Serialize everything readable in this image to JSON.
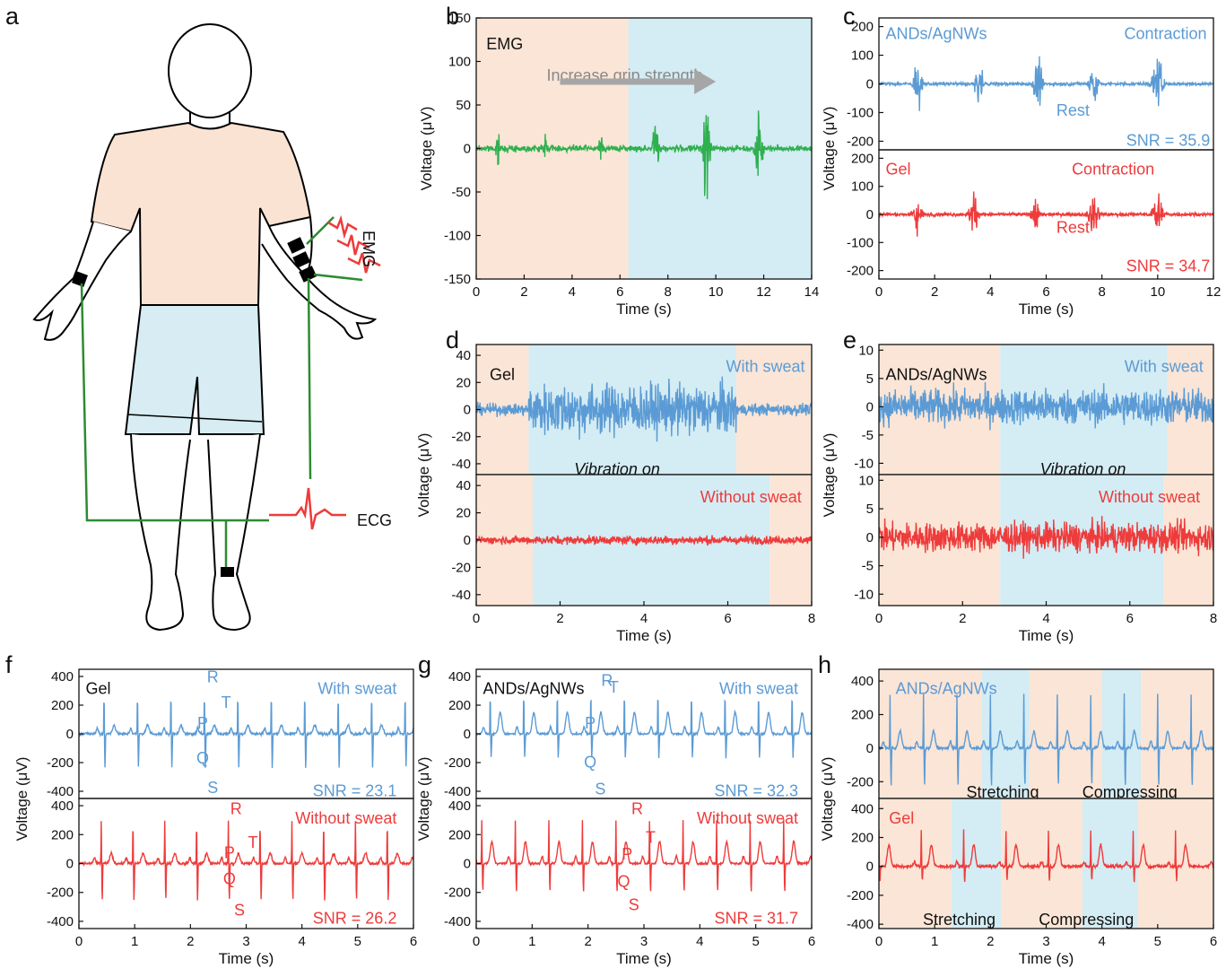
{
  "colors": {
    "blue": "#5b9bd5",
    "red": "#ee3b3b",
    "green": "#2fb04f",
    "orange_bg": "#fbe5d6",
    "blue_bg": "#d4ecf4",
    "wire": "#2e8b32",
    "shirt": "#fbe3d4",
    "shorts": "#d7ecf3"
  },
  "panel_a": {
    "letter": "a",
    "emg_label": "EMG",
    "ecg_label": "ECG"
  },
  "chart_data": [
    {
      "id": "b",
      "letter": "b",
      "type": "line",
      "annotations": [
        "EMG",
        "Increase grip strength"
      ],
      "xlabel": "Time (s)",
      "ylabel": "Voltage (μV)",
      "xlim": [
        0,
        14
      ],
      "ylim": [
        -150,
        150
      ],
      "xticks": [
        0,
        2,
        4,
        6,
        8,
        10,
        12,
        14
      ],
      "yticks": [
        -150,
        -100,
        -50,
        0,
        50,
        100,
        150
      ],
      "shaded": [
        {
          "from": 0,
          "to": 6.35,
          "color": "orange"
        },
        {
          "from": 6.35,
          "to": 14,
          "color": "blue"
        }
      ],
      "series": [
        {
          "color": "green",
          "kind": "emg",
          "noise": 2.5,
          "bursts": [
            [
              0.9,
              14,
              0.15
            ],
            [
              2.9,
              13,
              0.15
            ],
            [
              5.2,
              12,
              0.15
            ],
            [
              7.5,
              26,
              0.25
            ],
            [
              9.6,
              38,
              0.3
            ],
            [
              11.8,
              30,
              0.3
            ]
          ]
        }
      ]
    },
    {
      "id": "c",
      "letter": "c",
      "type": "line",
      "xlabel": "Time (s)",
      "ylabel": "Voltage (μV)",
      "xlim": [
        0,
        12
      ],
      "xticks": [
        0,
        2,
        4,
        6,
        8,
        10,
        12
      ],
      "subplots": [
        {
          "annotations": [
            "ANDs/AgNWs",
            "Contraction",
            "Rest",
            "SNR = 35.9"
          ],
          "ylim": [
            -230,
            230
          ],
          "yticks": [
            -200,
            -100,
            0,
            100,
            200
          ],
          "series": [
            {
              "color": "blue",
              "kind": "emg",
              "noise": 4,
              "bursts": [
                [
                  1.4,
                  55,
                  0.3
                ],
                [
                  3.6,
                  55,
                  0.3
                ],
                [
                  5.7,
                  60,
                  0.3
                ],
                [
                  7.7,
                  65,
                  0.3
                ],
                [
                  10,
                  70,
                  0.35
                ]
              ]
            }
          ]
        },
        {
          "annotations": [
            "Gel",
            "Contraction",
            "Rest",
            "SNR = 34.7"
          ],
          "ylim": [
            -230,
            230
          ],
          "yticks": [
            -200,
            -100,
            0,
            100,
            200
          ],
          "series": [
            {
              "color": "red",
              "kind": "emg",
              "noise": 4,
              "bursts": [
                [
                  1.4,
                  50,
                  0.3
                ],
                [
                  3.4,
                  50,
                  0.3
                ],
                [
                  5.6,
                  45,
                  0.3
                ],
                [
                  7.7,
                  55,
                  0.35
                ],
                [
                  10,
                  55,
                  0.35
                ]
              ]
            }
          ]
        }
      ]
    },
    {
      "id": "d",
      "letter": "d",
      "type": "line",
      "xlabel": "Time (s)",
      "ylabel": "Voltage (μV)",
      "xlim": [
        0,
        8
      ],
      "xticks": [
        0,
        2,
        4,
        6,
        8
      ],
      "subplots": [
        {
          "annotations": [
            "Gel",
            "With sweat",
            "Vibration on"
          ],
          "ylim": [
            -48,
            48
          ],
          "yticks": [
            -40,
            -20,
            0,
            20,
            40
          ],
          "shaded": [
            {
              "from": 0,
              "to": 1.25,
              "color": "orange"
            },
            {
              "from": 1.25,
              "to": 6.2,
              "color": "blue"
            },
            {
              "from": 6.2,
              "to": 8,
              "color": "orange"
            }
          ],
          "series": [
            {
              "color": "blue",
              "kind": "noise",
              "base": 3,
              "active": 13,
              "from": 1.25,
              "to": 6.2
            }
          ]
        },
        {
          "annotations": [
            "Without sweat"
          ],
          "ylim": [
            -48,
            48
          ],
          "yticks": [
            -40,
            -20,
            0,
            20,
            40
          ],
          "shaded": [
            {
              "from": 0,
              "to": 1.35,
              "color": "orange"
            },
            {
              "from": 1.35,
              "to": 7,
              "color": "blue"
            },
            {
              "from": 7,
              "to": 8,
              "color": "orange"
            }
          ],
          "series": [
            {
              "color": "red",
              "kind": "noise",
              "base": 2,
              "active": 2.2,
              "from": 1.35,
              "to": 7
            }
          ]
        }
      ]
    },
    {
      "id": "e",
      "letter": "e",
      "type": "line",
      "xlabel": "Time (s)",
      "ylabel": "Voltage (μV)",
      "xlim": [
        0,
        8
      ],
      "xticks": [
        0,
        2,
        4,
        6,
        8
      ],
      "subplots": [
        {
          "annotations": [
            "ANDs/AgNWs",
            "With sweat",
            "Vibration on"
          ],
          "ylim": [
            -12,
            11
          ],
          "yticks": [
            -10,
            -5,
            0,
            5,
            10
          ],
          "shaded": [
            {
              "from": 0,
              "to": 2.9,
              "color": "orange"
            },
            {
              "from": 2.9,
              "to": 6.9,
              "color": "blue"
            },
            {
              "from": 6.9,
              "to": 8,
              "color": "orange"
            }
          ],
          "series": [
            {
              "color": "blue",
              "kind": "noise",
              "base": 2.2,
              "active": 2.2,
              "from": 2.9,
              "to": 6.9
            }
          ]
        },
        {
          "annotations": [
            "Without sweat"
          ],
          "ylim": [
            -12,
            11
          ],
          "yticks": [
            -10,
            -5,
            0,
            5,
            10
          ],
          "shaded": [
            {
              "from": 0,
              "to": 2.9,
              "color": "orange"
            },
            {
              "from": 2.9,
              "to": 6.8,
              "color": "blue"
            },
            {
              "from": 6.8,
              "to": 8,
              "color": "orange"
            }
          ],
          "series": [
            {
              "color": "red",
              "kind": "noise",
              "base": 1.8,
              "active": 1.8,
              "from": 2.9,
              "to": 6.8
            }
          ]
        }
      ]
    },
    {
      "id": "f",
      "letter": "f",
      "type": "line",
      "xlabel": "Time (s)",
      "ylabel": "Voltage (μV)",
      "xlim": [
        0,
        6
      ],
      "xticks": [
        0,
        1,
        2,
        3,
        4,
        5,
        6
      ],
      "subplots": [
        {
          "annotations": [
            "Gel",
            "With sweat",
            "SNR = 23.1"
          ],
          "wave_labels": [
            "R",
            "P",
            "T",
            "Q",
            "S"
          ],
          "ylim": [
            -450,
            450
          ],
          "yticks": [
            -400,
            -200,
            0,
            200,
            400
          ],
          "series": [
            {
              "color": "blue",
              "kind": "ecg",
              "period": 0.6,
              "start": 0.45,
              "R": 300,
              "S": -240,
              "P": 40,
              "T": 60,
              "noise": 14
            }
          ]
        },
        {
          "annotations": [
            "Without sweat",
            "SNR = 26.2"
          ],
          "wave_labels": [
            "R",
            "P",
            "T",
            "Q",
            "S"
          ],
          "ylim": [
            -450,
            450
          ],
          "yticks": [
            -400,
            -200,
            0,
            200,
            400
          ],
          "series": [
            {
              "color": "red",
              "kind": "ecg",
              "period": 0.57,
              "start": 0.4,
              "R": 300,
              "S": -260,
              "P": 40,
              "T": 70,
              "noise": 12
            }
          ]
        }
      ]
    },
    {
      "id": "g",
      "letter": "g",
      "type": "line",
      "xlabel": "Time (s)",
      "ylabel": "Voltage (μV)",
      "xlim": [
        0,
        6
      ],
      "xticks": [
        0,
        1,
        2,
        3,
        4,
        5,
        6
      ],
      "subplots": [
        {
          "annotations": [
            "ANDs/AgNWs",
            "With sweat",
            "SNR = 32.3"
          ],
          "wave_labels": [
            "R",
            "P",
            "T",
            "Q",
            "S"
          ],
          "ylim": [
            -450,
            450
          ],
          "yticks": [
            -400,
            -200,
            0,
            200,
            400
          ],
          "series": [
            {
              "color": "blue",
              "kind": "ecg",
              "period": 0.6,
              "start": 0.25,
              "R": 310,
              "S": -170,
              "P": 50,
              "T": 150,
              "noise": 10
            }
          ]
        },
        {
          "annotations": [
            "Without sweat",
            "SNR = 31.7"
          ],
          "wave_labels": [
            "R",
            "P",
            "T",
            "Q",
            "S"
          ],
          "ylim": [
            -450,
            450
          ],
          "yticks": [
            -400,
            -200,
            0,
            200,
            400
          ],
          "series": [
            {
              "color": "red",
              "kind": "ecg",
              "period": 0.6,
              "start": 0.1,
              "R": 300,
              "S": -200,
              "P": 50,
              "T": 150,
              "noise": 10
            }
          ]
        }
      ]
    },
    {
      "id": "h",
      "letter": "h",
      "type": "line",
      "xlabel": "Time (s)",
      "ylabel": "Voltage (μV)",
      "xlim": [
        0,
        6
      ],
      "xticks": [
        0,
        1,
        2,
        3,
        4,
        5,
        6
      ],
      "subplots": [
        {
          "annotations": [
            "ANDs/AgNWs",
            "Stretching",
            "Compressing"
          ],
          "ylim": [
            -300,
            470
          ],
          "yticks": [
            -200,
            0,
            200,
            400
          ],
          "shaded": [
            {
              "from": 0,
              "to": 1.85,
              "color": "orange"
            },
            {
              "from": 1.85,
              "to": 2.7,
              "color": "blue"
            },
            {
              "from": 2.7,
              "to": 4.0,
              "color": "orange"
            },
            {
              "from": 4.0,
              "to": 4.7,
              "color": "blue"
            },
            {
              "from": 4.7,
              "to": 6,
              "color": "orange"
            }
          ],
          "series": [
            {
              "color": "blue",
              "kind": "ecg",
              "period": 0.6,
              "start": 0.2,
              "R": 320,
              "S": -230,
              "P": 40,
              "T": 100,
              "noise": 12
            }
          ]
        },
        {
          "annotations": [
            "Gel",
            "Stretching",
            "Compressing"
          ],
          "ylim": [
            -430,
            470
          ],
          "yticks": [
            -400,
            -200,
            0,
            200,
            400
          ],
          "shaded": [
            {
              "from": 0,
              "to": 1.3,
              "color": "orange"
            },
            {
              "from": 1.3,
              "to": 2.2,
              "color": "blue"
            },
            {
              "from": 2.2,
              "to": 3.65,
              "color": "orange"
            },
            {
              "from": 3.65,
              "to": 4.65,
              "color": "blue"
            },
            {
              "from": 4.65,
              "to": 6,
              "color": "orange"
            }
          ],
          "series": [
            {
              "color": "red",
              "kind": "ecg",
              "period": 0.76,
              "start": 0.0,
              "R": 250,
              "S": -100,
              "P": 30,
              "T": 150,
              "noise": 16
            }
          ]
        }
      ]
    }
  ]
}
